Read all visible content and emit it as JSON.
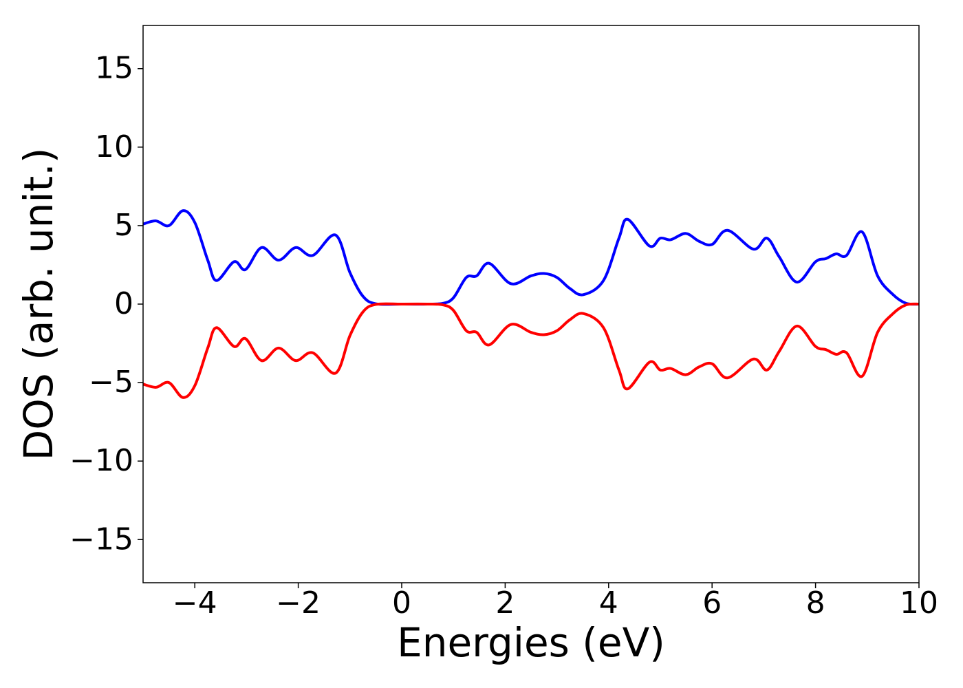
{
  "chart_data": {
    "type": "line",
    "x_label": "Energies (eV)",
    "y_label": "DOS (arb. unit.)",
    "x": [
      -5,
      -4.75,
      -4.5,
      -4.23,
      -4.0,
      -3.75,
      -3.58,
      -3.24,
      -3.02,
      -2.71,
      -2.38,
      -2.05,
      -1.72,
      -1.28,
      -1.0,
      -0.75,
      -0.5,
      0,
      0.5,
      0.8,
      1.0,
      1.25,
      1.45,
      1.69,
      2.11,
      2.5,
      2.75,
      3.0,
      3.25,
      3.51,
      3.9,
      4.2,
      4.37,
      4.79,
      5.0,
      5.2,
      5.49,
      5.75,
      6.0,
      6.3,
      6.8,
      7.06,
      7.3,
      7.64,
      8.0,
      8.2,
      8.4,
      8.6,
      8.9,
      9.2,
      9.5,
      9.75,
      10
    ],
    "series": [
      {
        "color": "#0000ff",
        "values": [
          5.1,
          5.3,
          5.0,
          5.95,
          5.2,
          2.8,
          1.5,
          2.7,
          2.2,
          3.6,
          2.8,
          3.6,
          3.1,
          4.4,
          2.0,
          0.5,
          0.02,
          0,
          0,
          0.05,
          0.4,
          1.7,
          1.8,
          2.6,
          1.3,
          1.8,
          1.95,
          1.7,
          1.0,
          0.6,
          1.5,
          4.2,
          5.4,
          3.7,
          4.2,
          4.1,
          4.5,
          4.0,
          3.8,
          4.7,
          3.5,
          4.2,
          3.0,
          1.4,
          2.7,
          2.9,
          3.2,
          3.1,
          4.6,
          1.8,
          0.6,
          0.05,
          0
        ]
      },
      {
        "color": "#ff0000",
        "values": [
          -5.1,
          -5.3,
          -5.0,
          -5.95,
          -5.2,
          -2.8,
          -1.5,
          -2.7,
          -2.2,
          -3.6,
          -2.8,
          -3.6,
          -3.1,
          -4.4,
          -2.0,
          -0.5,
          -0.02,
          0,
          0,
          -0.05,
          -0.4,
          -1.7,
          -1.8,
          -2.6,
          -1.3,
          -1.8,
          -1.95,
          -1.7,
          -1.0,
          -0.6,
          -1.5,
          -4.2,
          -5.4,
          -3.7,
          -4.2,
          -4.1,
          -4.5,
          -4.0,
          -3.8,
          -4.7,
          -3.5,
          -4.2,
          -3.0,
          -1.4,
          -2.7,
          -2.9,
          -3.2,
          -3.1,
          -4.6,
          -1.8,
          -0.6,
          -0.05,
          0
        ]
      }
    ],
    "xlim": [
      -5,
      10
    ],
    "xticks": [
      {
        "value": -4,
        "label": "−4"
      },
      {
        "value": -2,
        "label": "−2"
      },
      0,
      2,
      4,
      6,
      8,
      10
    ],
    "ylim": [
      -17.75,
      17.75
    ],
    "yticks": [
      {
        "value": -15,
        "label": "−15"
      },
      {
        "value": -10,
        "label": "−10"
      },
      {
        "value": -5,
        "label": "−5"
      },
      0,
      5,
      10,
      15
    ],
    "grid": false
  }
}
